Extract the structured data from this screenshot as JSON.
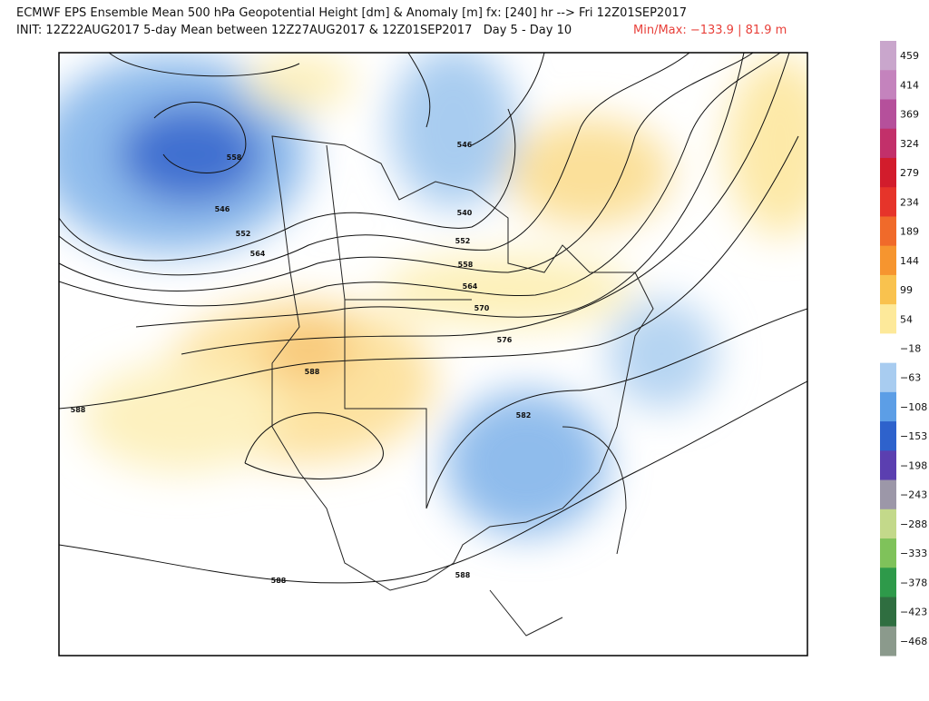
{
  "header": {
    "line1": "ECMWF EPS Ensemble Mean 500 hPa Geopotential Height [dm] & Anomaly [m] fx: [240] hr --> Fri 12Z01SEP2017",
    "line2": "INIT: 12Z22AUG2017 5-day Mean between 12Z27AUG2017 & 12Z01SEP2017   Day 5 - Day 10",
    "minmax": "Min/Max: −133.9 | 81.9 m"
  },
  "contour_labels": [
    "546",
    "552",
    "558",
    "564",
    "546",
    "540",
    "552",
    "558",
    "564",
    "570",
    "576",
    "582",
    "588",
    "588",
    "588",
    "588"
  ],
  "colorbar": [
    {
      "label": "459",
      "color": "#c9a6cc"
    },
    {
      "label": "414",
      "color": "#c483bd"
    },
    {
      "label": "369",
      "color": "#b5509b"
    },
    {
      "label": "324",
      "color": "#c2306a"
    },
    {
      "label": "279",
      "color": "#d21c2c"
    },
    {
      "label": "234",
      "color": "#e6342a"
    },
    {
      "label": "189",
      "color": "#f06a2a"
    },
    {
      "label": "144",
      "color": "#f6952f"
    },
    {
      "label": "99",
      "color": "#f9c24e"
    },
    {
      "label": "54",
      "color": "#fde99a"
    },
    {
      "label": "−18",
      "color": "#ffffff"
    },
    {
      "label": "−63",
      "color": "#a8ccf0"
    },
    {
      "label": "−108",
      "color": "#5c9ee6"
    },
    {
      "label": "−153",
      "color": "#2e62cc"
    },
    {
      "label": "−198",
      "color": "#5b3fb0"
    },
    {
      "label": "−243",
      "color": "#9c97a8"
    },
    {
      "label": "−288",
      "color": "#c3d98a"
    },
    {
      "label": "−333",
      "color": "#7fc25a"
    },
    {
      "label": "−378",
      "color": "#2e9a4a"
    },
    {
      "label": "−423",
      "color": "#2f6e40"
    },
    {
      "label": "−468",
      "color": "#8b9a8c"
    }
  ]
}
